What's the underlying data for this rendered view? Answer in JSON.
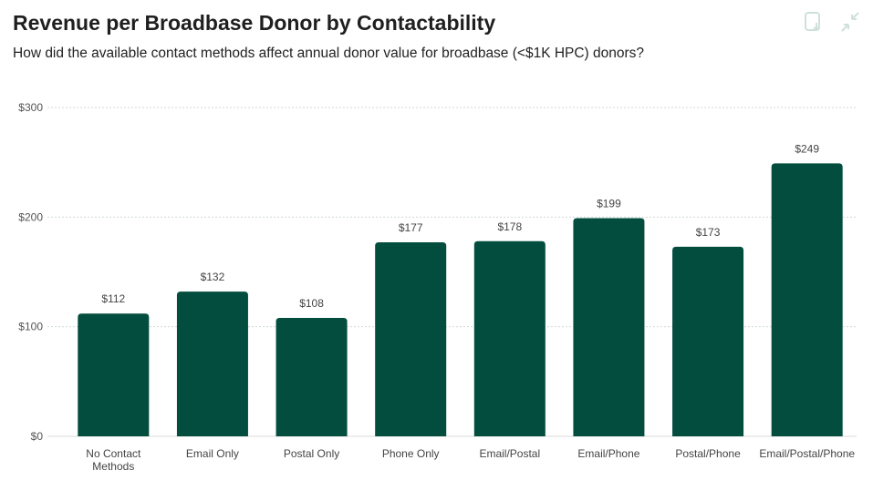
{
  "header": {
    "title": "Revenue per Broadbase Donor by Contactability",
    "subtitle": "How did the available contact methods affect annual donor value for broadbase (<$1K HPC) donors?"
  },
  "icons": [
    "download-icon",
    "collapse-icon"
  ],
  "chart_data": {
    "type": "bar",
    "title": "Revenue per Broadbase Donor by Contactability",
    "categories": [
      "No Contact Methods",
      "Email Only",
      "Postal Only",
      "Phone Only",
      "Email/Postal",
      "Email/Phone",
      "Postal/Phone",
      "Email/Postal/Phone"
    ],
    "category_lines": [
      [
        "No Contact",
        "Methods"
      ],
      [
        "Email Only"
      ],
      [
        "Postal Only"
      ],
      [
        "Phone Only"
      ],
      [
        "Email/Postal"
      ],
      [
        "Email/Phone"
      ],
      [
        "Postal/Phone"
      ],
      [
        "Email/Postal/Phone"
      ]
    ],
    "values": [
      112,
      132,
      108,
      177,
      178,
      199,
      173,
      249
    ],
    "data_labels": [
      "$112",
      "$132",
      "$108",
      "$177",
      "$178",
      "$199",
      "$173",
      "$249"
    ],
    "yticks": [
      0,
      100,
      200,
      300
    ],
    "ytick_labels": [
      "$0",
      "$100",
      "$200",
      "$300"
    ],
    "ylim": [
      0,
      300
    ],
    "grid": true,
    "bar_color": "#024d3e"
  }
}
